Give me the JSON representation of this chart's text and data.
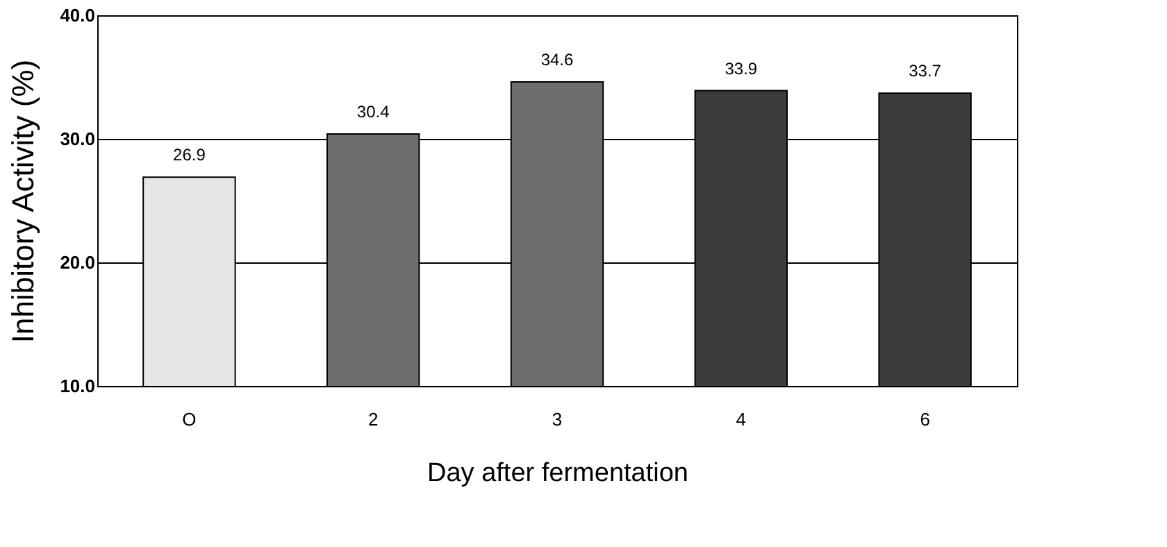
{
  "chart_data": {
    "type": "bar",
    "categories": [
      "O",
      "2",
      "3",
      "4",
      "6"
    ],
    "values": [
      26.9,
      30.4,
      34.6,
      33.9,
      33.7
    ],
    "colors": [
      "#e6e6e6",
      "#6e6e6e",
      "#6e6e6e",
      "#3c3c3c",
      "#3c3c3c"
    ],
    "xlabel": "Day after fermentation",
    "ylabel": "Inhibitory Activity (%)",
    "ylim": [
      10,
      40
    ],
    "yticks": [
      {
        "value": 10,
        "label": "10.0"
      },
      {
        "value": 20,
        "label": "20.0"
      },
      {
        "value": 30,
        "label": "30.0"
      },
      {
        "value": 40,
        "label": "40.0"
      }
    ],
    "grid": "y",
    "data_labels": true
  }
}
